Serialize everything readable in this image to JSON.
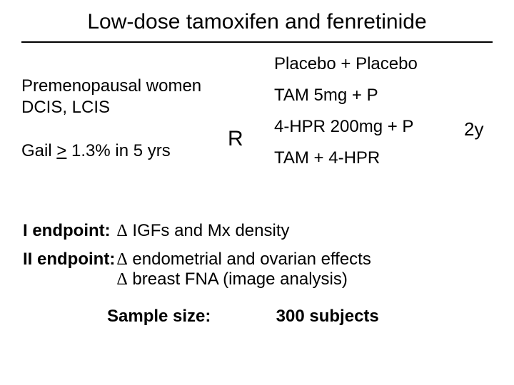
{
  "title": "Low-dose tamoxifen and fenretinide",
  "population": {
    "line1": "Premenopausal women",
    "line2": "DCIS, LCIS"
  },
  "gail_prefix": "Gail ",
  "gail_symbol": ">",
  "gail_suffix": " 1.3% in 5 yrs",
  "r_label": "R",
  "arms": {
    "a1": "Placebo + Placebo",
    "a2": "TAM 5mg + P",
    "a3": "4-HPR 200mg + P",
    "a4": "TAM + 4-HPR"
  },
  "duration": "2y",
  "endpoint1": {
    "label": "I endpoint:",
    "delta": "Δ",
    "text": " IGFs and Mx density"
  },
  "endpoint2": {
    "label": "II endpoint:",
    "delta1": "Δ",
    "text1": " endometrial and ovarian effects",
    "delta2": "Δ",
    "text2": " breast FNA (image analysis)"
  },
  "sample": {
    "label": "Sample size:",
    "value": "300 subjects"
  },
  "colors": {
    "background": "#ffffff",
    "text": "#000000",
    "rule": "#000000"
  },
  "fonts": {
    "title_family": "Arial",
    "title_size_pt": 22,
    "body_family": "Comic Sans MS",
    "body_size_pt": 18
  }
}
